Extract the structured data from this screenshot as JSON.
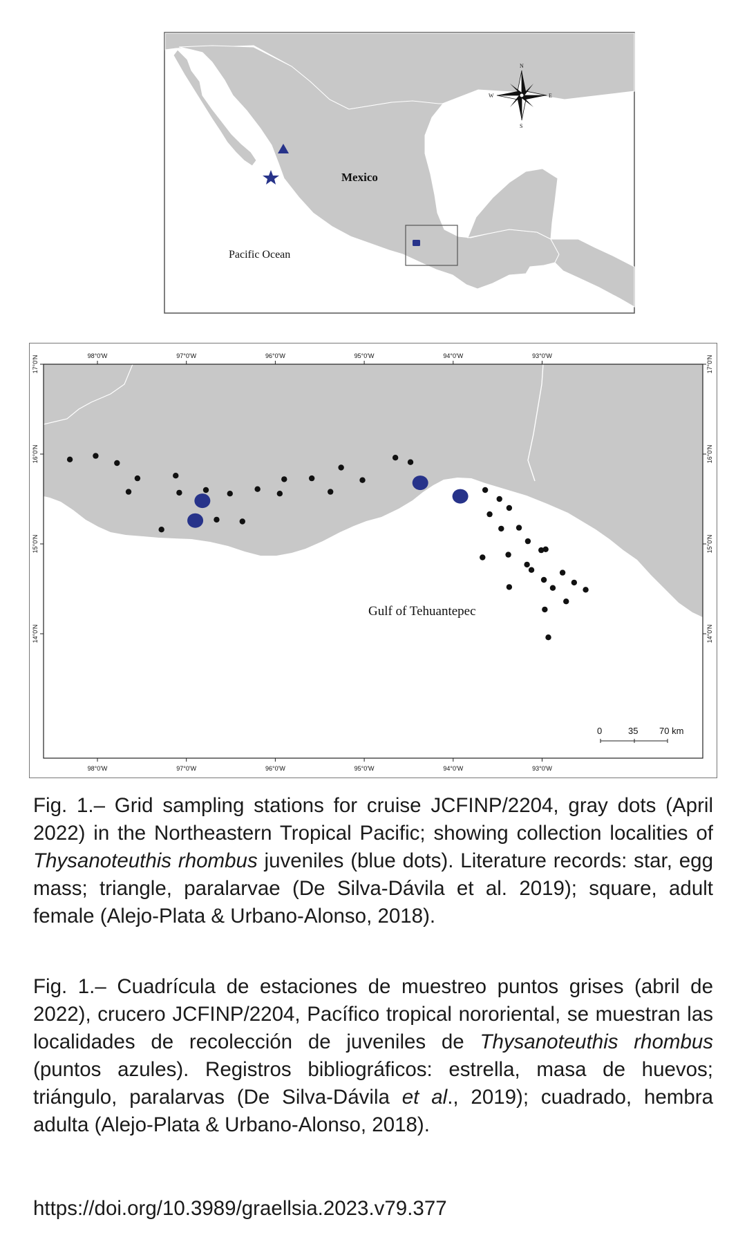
{
  "inset_map": {
    "country_label": "Mexico",
    "ocean_label": "Pacific Ocean",
    "compass": {
      "n": "N",
      "s": "S",
      "e": "E",
      "w": "W"
    },
    "markers": [
      {
        "type": "star",
        "meaning": "egg mass",
        "color": "#27338a"
      },
      {
        "type": "triangle",
        "meaning": "paralarvae",
        "color": "#27338a"
      },
      {
        "type": "square",
        "meaning": "adult female",
        "color": "#27338a"
      }
    ]
  },
  "main_map": {
    "lon_ticks": [
      "98°0'W",
      "97°0'W",
      "96°0'W",
      "95°0'W",
      "94°0'W",
      "93°0'W"
    ],
    "lat_ticks": [
      "17°0'N",
      "16°0'N",
      "15°0'N",
      "14°0'N"
    ],
    "gulf_label": "Gulf of Tehuantepec",
    "scale_bar": {
      "labels": [
        "0",
        "35",
        "70 km"
      ]
    },
    "colors": {
      "land": "#c8c8c8",
      "sea": "#ffffff",
      "station": "#111111",
      "juvenile": "#27338a"
    },
    "juvenile_sites": [
      {
        "lon": -96.82,
        "lat": 15.48
      },
      {
        "lon": -96.9,
        "lat": 15.26
      },
      {
        "lon": -94.37,
        "lat": 15.68
      },
      {
        "lon": -93.92,
        "lat": 15.53
      }
    ],
    "stations": [
      [
        -98.31,
        15.94
      ],
      [
        -98.02,
        15.98
      ],
      [
        -97.78,
        15.9
      ],
      [
        -97.55,
        15.73
      ],
      [
        -97.65,
        15.58
      ],
      [
        -97.28,
        15.16
      ],
      [
        -97.12,
        15.76
      ],
      [
        -97.08,
        15.57
      ],
      [
        -96.78,
        15.6
      ],
      [
        -96.66,
        15.27
      ],
      [
        -96.51,
        15.56
      ],
      [
        -96.37,
        15.25
      ],
      [
        -96.2,
        15.61
      ],
      [
        -95.9,
        15.72
      ],
      [
        -95.95,
        15.56
      ],
      [
        -95.59,
        15.73
      ],
      [
        -95.38,
        15.58
      ],
      [
        -95.26,
        15.85
      ],
      [
        -95.02,
        15.71
      ],
      [
        -94.65,
        15.96
      ],
      [
        -94.48,
        15.91
      ],
      [
        -93.64,
        15.6
      ],
      [
        -93.59,
        15.33
      ],
      [
        -93.48,
        15.5
      ],
      [
        -93.46,
        15.17
      ],
      [
        -93.37,
        15.4
      ],
      [
        -93.38,
        14.88
      ],
      [
        -93.37,
        14.52
      ],
      [
        -93.26,
        15.18
      ],
      [
        -93.16,
        15.03
      ],
      [
        -93.17,
        14.77
      ],
      [
        -93.12,
        14.71
      ],
      [
        -93.01,
        14.93
      ],
      [
        -92.96,
        14.94
      ],
      [
        -92.98,
        14.6
      ],
      [
        -92.97,
        14.27
      ],
      [
        -92.88,
        14.51
      ],
      [
        -92.93,
        13.96
      ],
      [
        -92.77,
        14.68
      ],
      [
        -92.73,
        14.36
      ],
      [
        -92.64,
        14.57
      ],
      [
        -92.51,
        14.49
      ],
      [
        -93.67,
        14.85
      ]
    ]
  },
  "caption_en": {
    "part1": "Fig. 1.– Grid sampling stations for cruise JCFINP/2204, gray dots (April 2022) in the Northeastern Tropical Pacific; showing collection localities of ",
    "species": "Thysanoteuthis rhombus",
    "part2": " juveniles (blue dots). Literature records: star, egg mass; triangle, paralarvae (De Silva-Dávila et al. 2019); square, adult female (Alejo-Plata & Urbano-Alonso, 2018)."
  },
  "caption_es": {
    "part1": "Fig. 1.– Cuadrícula de estaciones de muestreo puntos grises (abril de 2022), crucero JCFINP/2204, Pacífico tropical nororiental, se muestran las localidades de recolección de juveniles de ",
    "species": "Thysanoteuthis rhombus",
    "part2": " (puntos azules). Registros bibliográficos: estrella, masa de huevos; triángulo, paralarvas (De Silva-Dávila ",
    "etal": "et al",
    "part3": "., 2019); cuadrado, hembra adulta (Alejo-Plata & Urbano-Alonso, 2018)."
  },
  "doi": "https://doi.org/10.3989/graellsia.2023.v79.377"
}
